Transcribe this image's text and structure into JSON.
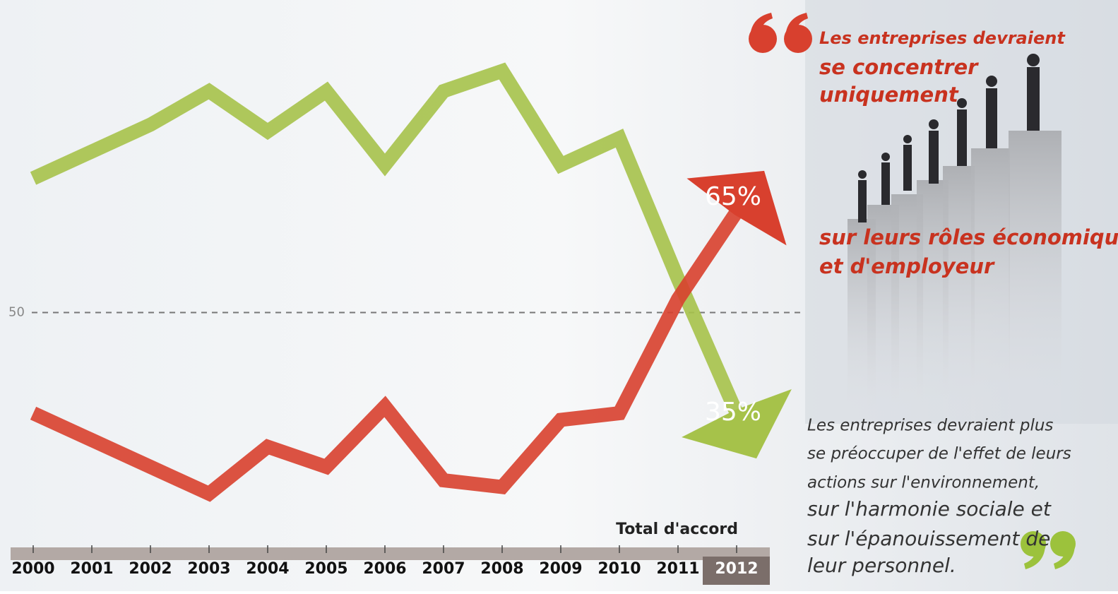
{
  "chart_data": {
    "type": "line",
    "categories": [
      "2000",
      "2001",
      "2002",
      "2003",
      "2004",
      "2005",
      "2006",
      "2007",
      "2008",
      "2009",
      "2010",
      "2011",
      "2012"
    ],
    "series": [
      {
        "color": "#a6c24a",
        "values": [
          70,
          74,
          78,
          83,
          77,
          83,
          72,
          83,
          86,
          72,
          76,
          55,
          35
        ],
        "value_labels": [
          null,
          null,
          null,
          null,
          null,
          null,
          null,
          null,
          null,
          null,
          null,
          null,
          "35%"
        ]
      },
      {
        "color": "#d8402e",
        "values": [
          35,
          31,
          27,
          23,
          30,
          27,
          36,
          25,
          24,
          34,
          35,
          52,
          65
        ],
        "value_labels": [
          null,
          null,
          null,
          null,
          null,
          null,
          null,
          null,
          null,
          null,
          null,
          null,
          "65%"
        ]
      }
    ],
    "ylim": [
      15,
      95
    ],
    "yticks": [
      50
    ],
    "grid": true,
    "annotation": "Total d'accord"
  },
  "quote": {
    "lines": [
      "Les entreprises devraient",
      "se concentrer",
      "uniquement",
      "sur leurs rôles économique",
      "et d'employeur"
    ]
  },
  "paragraph": {
    "lines": [
      "Les entreprises devraient plus",
      "se préoccuper de l'effet de leurs",
      "actions sur l'environnement,",
      "sur l'harmonie sociale et",
      "sur l'épanouissement de",
      "leur personnel."
    ]
  }
}
